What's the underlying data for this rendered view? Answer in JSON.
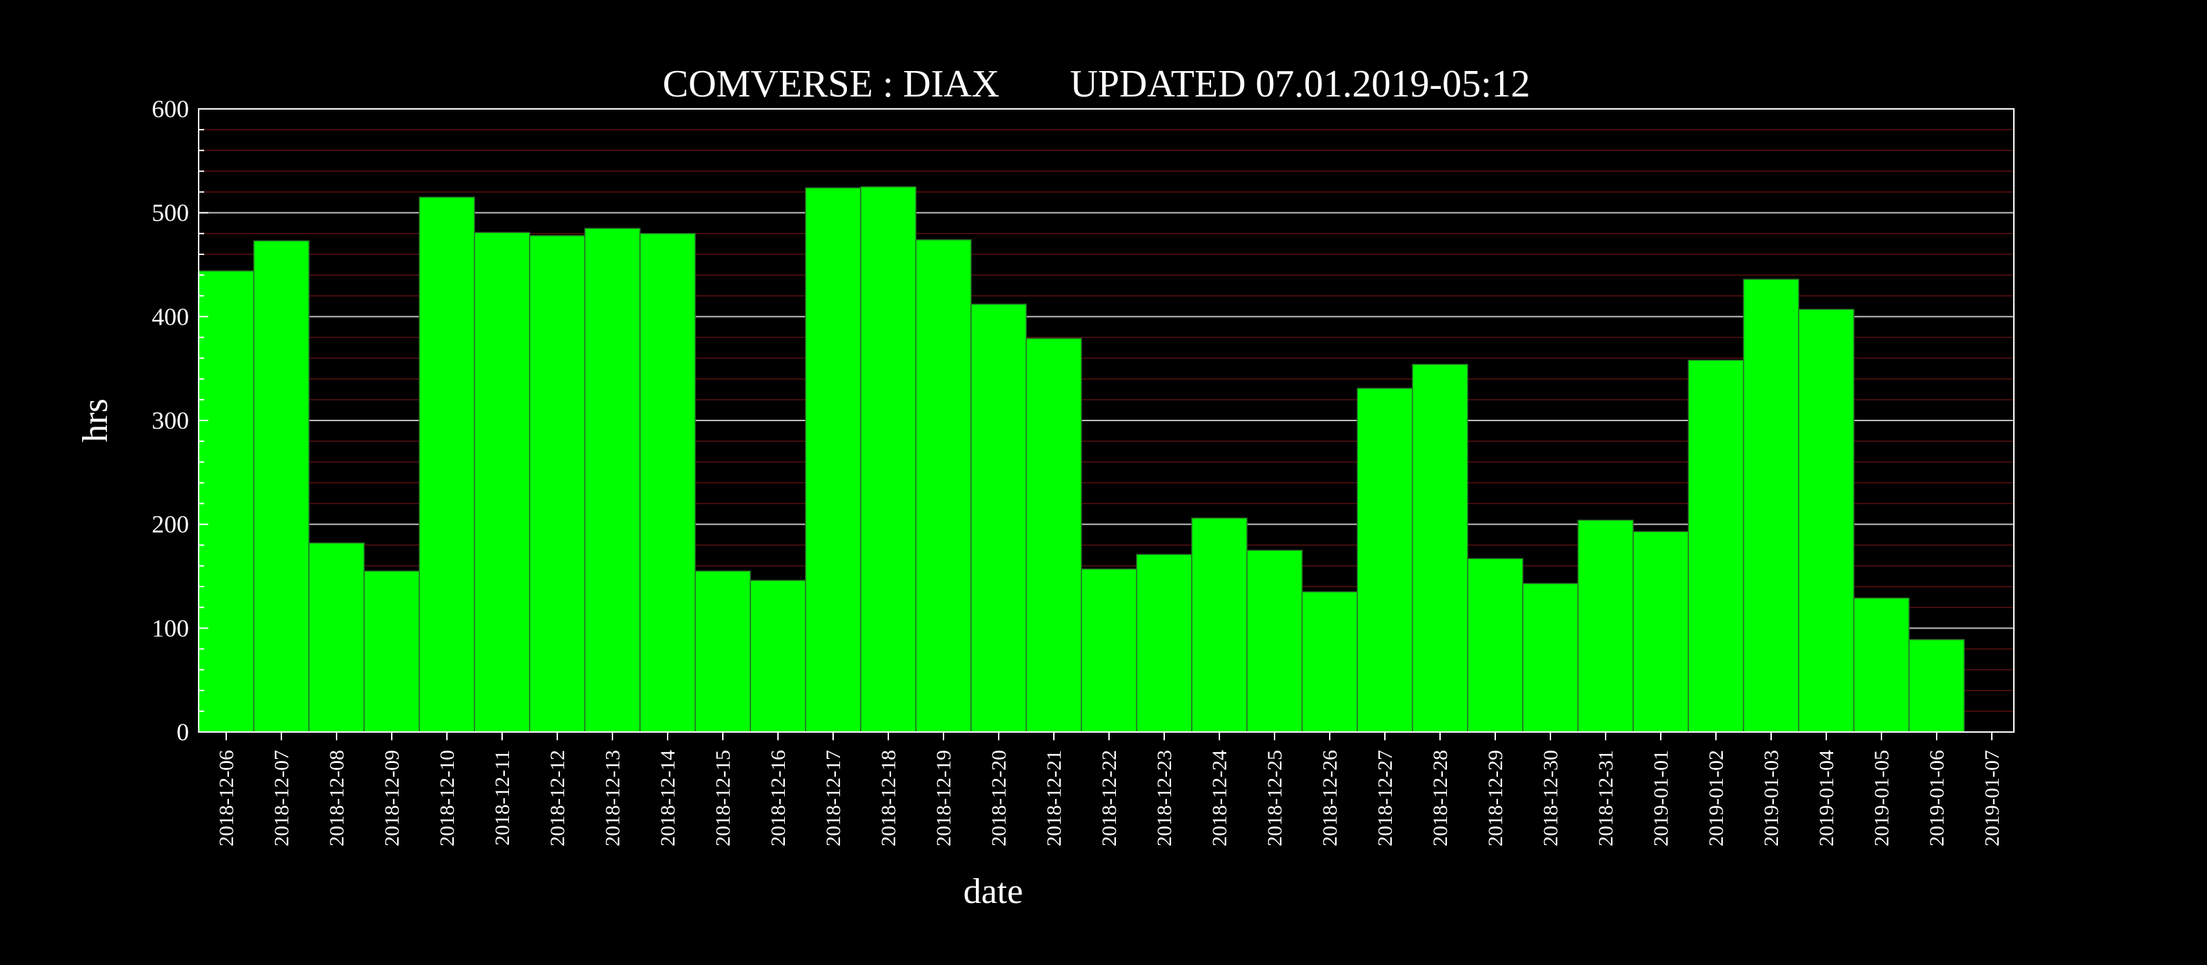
{
  "chart_data": {
    "type": "bar",
    "title": "COMVERSE : DIAX",
    "subtitle": "UPDATED 07.01.2019-05:12",
    "xlabel": "date",
    "ylabel": "hrs",
    "ylim": [
      0,
      600
    ],
    "y_ticks": [
      "0",
      "100",
      "200",
      "300",
      "400",
      "500",
      "600"
    ],
    "grid": true,
    "categories": [
      "2018-12-06",
      "2018-12-07",
      "2018-12-08",
      "2018-12-09",
      "2018-12-10",
      "2018-12-11",
      "2018-12-12",
      "2018-12-13",
      "2018-12-14",
      "2018-12-15",
      "2018-12-16",
      "2018-12-17",
      "2018-12-18",
      "2018-12-19",
      "2018-12-20",
      "2018-12-21",
      "2018-12-22",
      "2018-12-23",
      "2018-12-24",
      "2018-12-25",
      "2018-12-26",
      "2018-12-27",
      "2018-12-28",
      "2018-12-29",
      "2018-12-30",
      "2018-12-31",
      "2019-01-01",
      "2019-01-02",
      "2019-01-03",
      "2019-01-04",
      "2019-01-05",
      "2019-01-06",
      "2019-01-07"
    ],
    "values": [
      444,
      473,
      182,
      155,
      515,
      481,
      478,
      485,
      480,
      155,
      146,
      524,
      525,
      474,
      412,
      379,
      157,
      171,
      206,
      175,
      135,
      331,
      354,
      167,
      143,
      204,
      193,
      358,
      436,
      407,
      129,
      89,
      0
    ],
    "colors": {
      "bar": "#00ff00",
      "bar_outline": "#2a6b2a",
      "major_grid": "#bfbfbf",
      "minor_grid": "#5a1010",
      "axis": "#ffffff",
      "background": "#000000"
    }
  }
}
